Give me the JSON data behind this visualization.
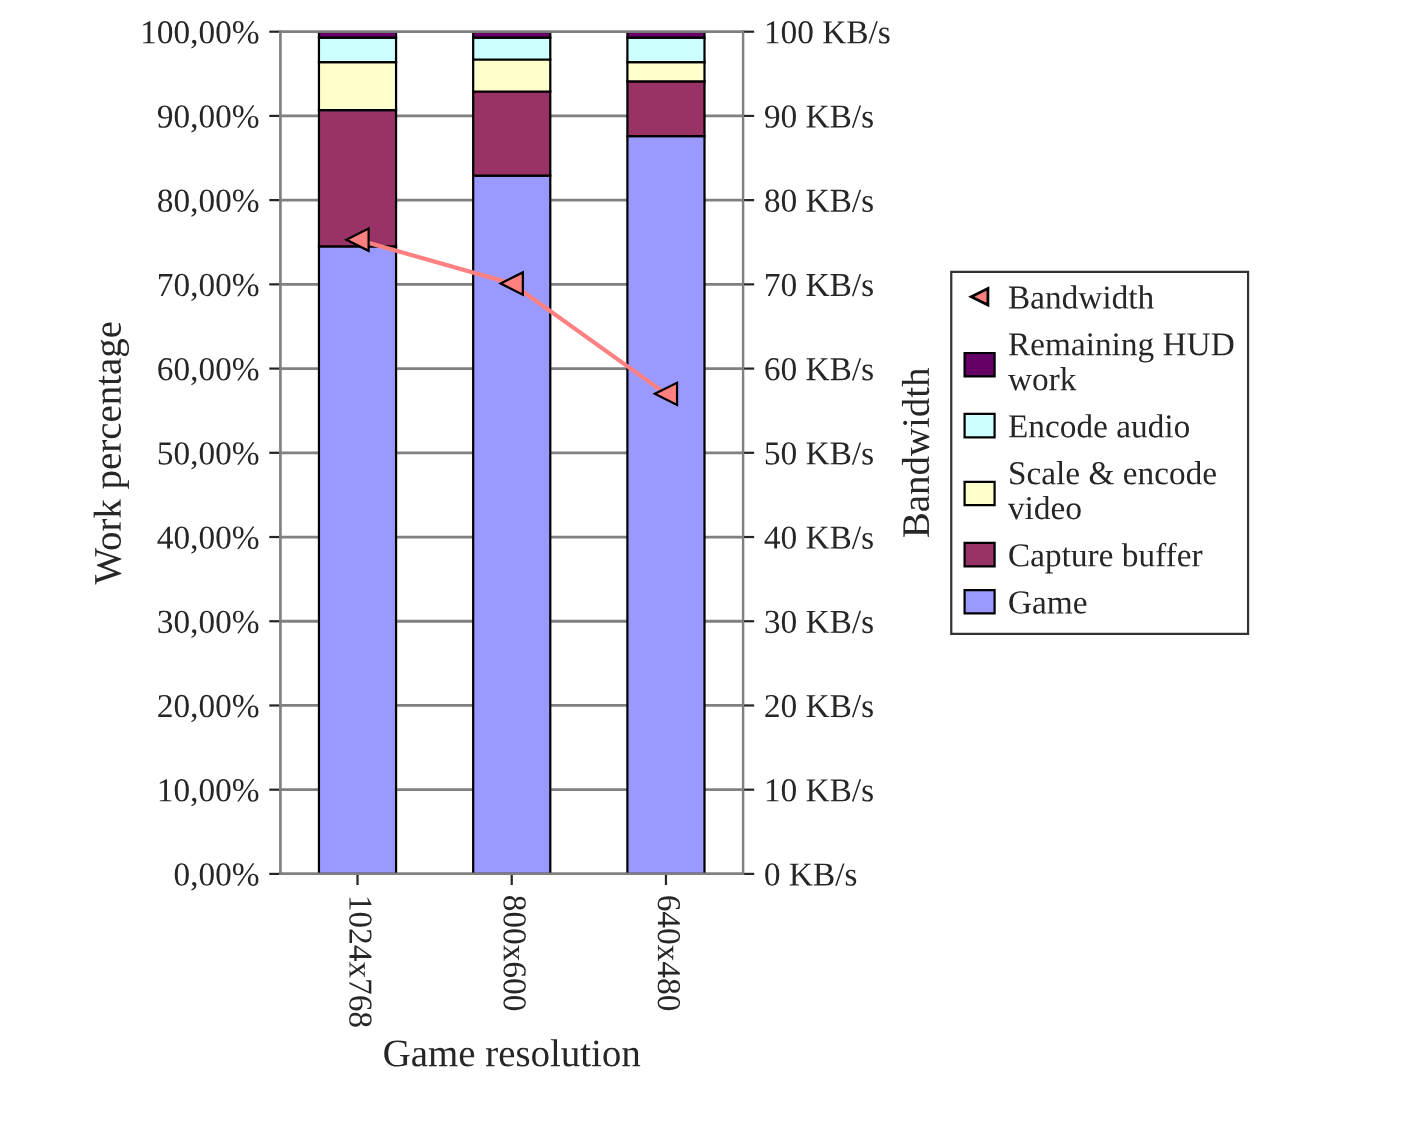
{
  "chart_data": {
    "type": "bar",
    "stacked": true,
    "xlabel": "Game resolution",
    "ylabel": "Work percentage",
    "y2label": "Bandwidth",
    "categories": [
      "1024x768",
      "800x600",
      "640x480"
    ],
    "series": [
      {
        "name": "Game",
        "color": "#9999ff",
        "values": [
          74.5,
          82.9,
          87.6
        ]
      },
      {
        "name": "Capture buffer",
        "color": "#993366",
        "values": [
          16.2,
          10.0,
          6.5
        ]
      },
      {
        "name": "Scale & encode video",
        "color": "#ffffcc",
        "values": [
          5.7,
          3.8,
          2.3
        ]
      },
      {
        "name": "Encode audio",
        "color": "#ccffff",
        "values": [
          2.9,
          2.6,
          2.9
        ]
      },
      {
        "name": "Remaining HUD work",
        "color": "#660066",
        "values": [
          0.7,
          0.7,
          0.7
        ]
      },
      {
        "name": "Bandwidth",
        "type": "line",
        "axis": "y2",
        "color": "#ff8080",
        "marker": "triangle",
        "values": [
          75.3,
          70.1,
          57.0
        ]
      }
    ],
    "ylim": [
      0,
      100
    ],
    "yticks": [
      {
        "value": 0,
        "label": "0,00%"
      },
      {
        "value": 10,
        "label": "10,00%"
      },
      {
        "value": 20,
        "label": "20,00%"
      },
      {
        "value": 30,
        "label": "30,00%"
      },
      {
        "value": 40,
        "label": "40,00%"
      },
      {
        "value": 50,
        "label": "50,00%"
      },
      {
        "value": 60,
        "label": "60,00%"
      },
      {
        "value": 70,
        "label": "70,00%"
      },
      {
        "value": 80,
        "label": "80,00%"
      },
      {
        "value": 90,
        "label": "90,00%"
      },
      {
        "value": 100,
        "label": "100,00%"
      }
    ],
    "y2lim": [
      0,
      100
    ],
    "y2ticks": [
      {
        "value": 0,
        "label": "0 KB/s"
      },
      {
        "value": 10,
        "label": "10 KB/s"
      },
      {
        "value": 20,
        "label": "20 KB/s"
      },
      {
        "value": 30,
        "label": "30 KB/s"
      },
      {
        "value": 40,
        "label": "40 KB/s"
      },
      {
        "value": 50,
        "label": "50 KB/s"
      },
      {
        "value": 60,
        "label": "60 KB/s"
      },
      {
        "value": 70,
        "label": "70 KB/s"
      },
      {
        "value": 80,
        "label": "80 KB/s"
      },
      {
        "value": 90,
        "label": "90 KB/s"
      },
      {
        "value": 100,
        "label": "100 KB/s"
      }
    ],
    "grid": "y",
    "legend": "right"
  }
}
